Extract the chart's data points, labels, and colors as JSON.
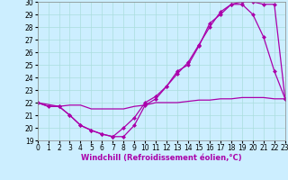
{
  "xlabel": "Windchill (Refroidissement éolien,°C)",
  "bg_color": "#cceeff",
  "line_color": "#aa00aa",
  "xlim": [
    0,
    23
  ],
  "ylim": [
    19,
    30
  ],
  "yticks": [
    19,
    20,
    21,
    22,
    23,
    24,
    25,
    26,
    27,
    28,
    29,
    30
  ],
  "xticks": [
    0,
    1,
    2,
    3,
    4,
    5,
    6,
    7,
    8,
    9,
    10,
    11,
    12,
    13,
    14,
    15,
    16,
    17,
    18,
    19,
    20,
    21,
    22,
    23
  ],
  "line1_x": [
    0,
    1,
    2,
    3,
    4,
    5,
    6,
    7,
    8,
    9,
    10,
    11,
    12,
    13,
    14,
    15,
    16,
    17,
    18,
    19,
    20,
    21,
    22,
    23
  ],
  "line1_y": [
    22.0,
    21.7,
    21.7,
    21.8,
    21.8,
    21.5,
    21.5,
    21.5,
    21.5,
    21.7,
    21.8,
    22.0,
    22.0,
    22.0,
    22.1,
    22.2,
    22.2,
    22.3,
    22.3,
    22.4,
    22.4,
    22.4,
    22.3,
    22.3
  ],
  "line2_x": [
    0,
    1,
    2,
    3,
    4,
    5,
    6,
    7,
    8,
    9,
    10,
    11,
    12,
    13,
    14,
    15,
    16,
    17,
    18,
    19,
    20,
    21,
    22,
    23
  ],
  "line2_y": [
    22.0,
    21.7,
    21.7,
    21.0,
    20.2,
    19.8,
    19.5,
    19.3,
    19.3,
    20.2,
    21.8,
    22.3,
    23.3,
    24.5,
    25.0,
    26.5,
    28.3,
    29.0,
    29.8,
    29.8,
    29.0,
    27.2,
    24.5,
    22.3
  ],
  "line3_x": [
    0,
    2,
    3,
    4,
    5,
    6,
    7,
    8,
    9,
    10,
    11,
    12,
    13,
    14,
    15,
    16,
    17,
    18,
    19,
    20,
    21,
    22,
    23
  ],
  "line3_y": [
    22.0,
    21.7,
    21.0,
    20.2,
    19.8,
    19.5,
    19.3,
    20.0,
    20.8,
    22.0,
    22.5,
    23.3,
    24.3,
    25.2,
    26.6,
    28.0,
    29.2,
    29.8,
    30.0,
    30.0,
    29.8,
    29.8,
    22.3
  ],
  "grid_color": "#aadddd",
  "marker": "D",
  "marker_size": 2.5,
  "linewidth": 0.9,
  "xlabel_fontsize": 6,
  "tick_fontsize": 5.5
}
